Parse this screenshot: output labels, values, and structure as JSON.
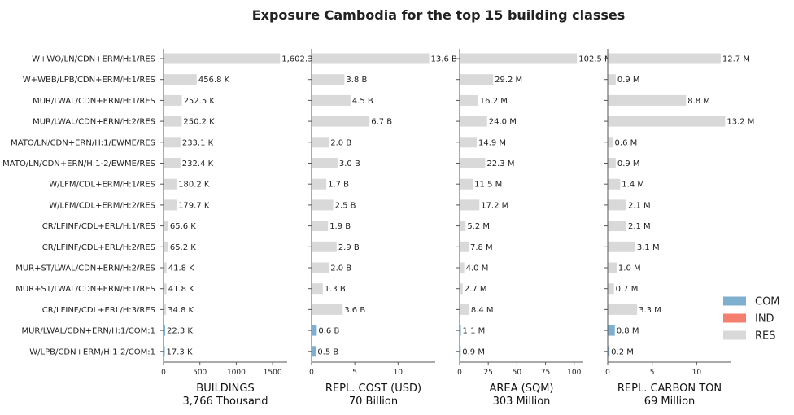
{
  "chart_data": {
    "type": "bar",
    "orientation": "horizontal",
    "title": "Exposure Cambodia for the top 15 building classes",
    "categories": [
      "W+WO/LN/CDN+ERM/H:1/RES",
      "W+WBB/LPB/CDN+ERM/H:1/RES",
      "MUR/LWAL/CDN+ERN/H:1/RES",
      "MUR/LWAL/CDN+ERN/H:2/RES",
      "MATO/LN/CDN+ERN/H:1/EWME/RES",
      "MATO/LN/CDN+ERN/H:1-2/EWME/RES",
      "W/LFM/CDL+ERM/H:1/RES",
      "W/LFM/CDL+ERM/H:2/RES",
      "CR/LFINF/CDL+ERL/H:1/RES",
      "CR/LFINF/CDL+ERL/H:2/RES",
      "MUR+ST/LWAL/CDN+ERN/H:2/RES",
      "MUR+ST/LWAL/CDN+ERN/H:1/RES",
      "CR/LFINF/CDL+ERL/H:3/RES",
      "MUR/LWAL/CDN+ERN/H:1/COM:1",
      "W/LPB/CDN+ERM/H:1-2/COM:1"
    ],
    "occupancy": [
      "RES",
      "RES",
      "RES",
      "RES",
      "RES",
      "RES",
      "RES",
      "RES",
      "RES",
      "RES",
      "RES",
      "RES",
      "RES",
      "COM",
      "COM"
    ],
    "legend": {
      "placement": "right",
      "entries": [
        {
          "label": "COM",
          "color": "#7fafcf"
        },
        {
          "label": "IND",
          "color": "#f47f6e"
        },
        {
          "label": "RES",
          "color": "#d9d9d9"
        }
      ]
    },
    "panels": [
      {
        "xlabel": "BUILDINGS",
        "total": "3,766 Thousand",
        "xlim": [
          0,
          1700
        ],
        "ticks": [
          0,
          500,
          1000,
          1500
        ],
        "tick_labels": [
          "0",
          "500",
          "1000",
          "1500"
        ],
        "values": [
          1602.3,
          456.8,
          252.5,
          250.2,
          233.1,
          232.4,
          180.2,
          179.7,
          65.6,
          65.2,
          41.8,
          41.8,
          34.8,
          22.3,
          17.3
        ],
        "labels": [
          "1,602.3 K",
          "456.8 K",
          "252.5 K",
          "250.2 K",
          "233.1 K",
          "232.4 K",
          "180.2 K",
          "179.7 K",
          "65.6 K",
          "65.2 K",
          "41.8 K",
          "41.8 K",
          "34.8 K",
          "22.3 K",
          "17.3 K"
        ]
      },
      {
        "xlabel": "REPL. COST (USD)",
        "total": "70 Billion",
        "xlim": [
          0,
          14.3
        ],
        "ticks": [
          0,
          5,
          10
        ],
        "tick_labels": [
          "0",
          "5",
          "10"
        ],
        "values": [
          13.6,
          3.8,
          4.5,
          6.7,
          2.0,
          3.0,
          1.7,
          2.5,
          1.9,
          2.9,
          2.0,
          1.3,
          3.6,
          0.6,
          0.5
        ],
        "labels": [
          "13.6 B",
          "3.8 B",
          "4.5 B",
          "6.7 B",
          "2.0 B",
          "3.0 B",
          "1.7 B",
          "2.5 B",
          "1.9 B",
          "2.9 B",
          "2.0 B",
          "1.3 B",
          "3.6 B",
          "0.6 B",
          "0.5 B"
        ]
      },
      {
        "xlabel": "AREA (SQM)",
        "total": "303 Million",
        "xlim": [
          0,
          108
        ],
        "ticks": [
          0,
          25,
          50,
          75,
          100
        ],
        "tick_labels": [
          "0",
          "25",
          "50",
          "75",
          "100"
        ],
        "values": [
          102.5,
          29.2,
          16.2,
          24.0,
          14.9,
          22.3,
          11.5,
          17.2,
          5.2,
          7.8,
          4.0,
          2.7,
          8.4,
          1.1,
          0.9
        ],
        "labels": [
          "102.5 M",
          "29.2 M",
          "16.2 M",
          "24.0 M",
          "14.9 M",
          "22.3 M",
          "11.5 M",
          "17.2 M",
          "5.2 M",
          "7.8 M",
          "4.0 M",
          "2.7 M",
          "8.4 M",
          "1.1 M",
          "0.9 M"
        ]
      },
      {
        "xlabel": "REPL. CARBON TON",
        "total": "69 Million",
        "xlim": [
          0,
          13.9
        ],
        "ticks": [
          0,
          5,
          10
        ],
        "tick_labels": [
          "0",
          "5",
          "10"
        ],
        "values": [
          12.7,
          0.9,
          8.8,
          13.2,
          0.6,
          0.9,
          1.4,
          2.1,
          2.1,
          3.1,
          1.0,
          0.7,
          3.3,
          0.8,
          0.2
        ],
        "labels": [
          "12.7 M",
          "0.9 M",
          "8.8 M",
          "13.2 M",
          "0.6 M",
          "0.9 M",
          "1.4 M",
          "2.1 M",
          "2.1 M",
          "3.1 M",
          "1.0 M",
          "0.7 M",
          "3.3 M",
          "0.8 M",
          "0.2 M"
        ]
      }
    ]
  }
}
